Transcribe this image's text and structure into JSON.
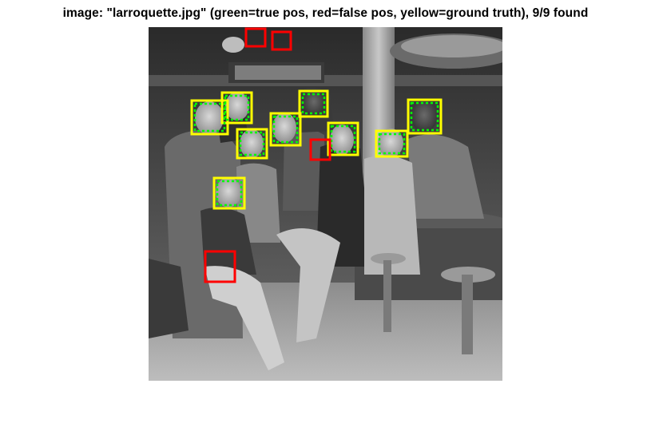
{
  "figure": {
    "title": "image: \"larroquette.jpg\" (green=true pos, red=false pos, yellow=ground truth), 9/9 found"
  },
  "colors": {
    "background": "#ffffff",
    "true_positive": "#00ff00",
    "false_positive": "#ff0000",
    "ground_truth": "#ffff00"
  },
  "detections": {
    "found": 9,
    "total": 9,
    "true_positive_count": 9,
    "false_positive_count": 4,
    "ground_truth_count": 9
  },
  "photo": {
    "subject": "grayscale group photo of eleven people posed around a diner counter",
    "icon": "photo-icon"
  }
}
